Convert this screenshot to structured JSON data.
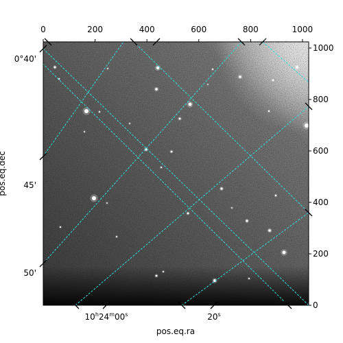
{
  "chart_data": {
    "type": "image",
    "xlabel": "pos.eq.ra",
    "ylabel": "pos.eq.dec",
    "pixel_axes": {
      "x_range": [
        0,
        1024
      ],
      "y_range": [
        0,
        1024
      ],
      "x_ticks": [
        0,
        200,
        400,
        600,
        800,
        1000
      ],
      "y_ticks": [
        0,
        200,
        400,
        600,
        800,
        1000
      ],
      "x_tick_labels": [
        "0",
        "200",
        "400",
        "600",
        "800",
        "1000"
      ],
      "y_tick_labels": [
        "0",
        "200",
        "400",
        "600",
        "800",
        "1000"
      ]
    },
    "world_axes": {
      "ra_tick_labels": [
        {
          "h": "10",
          "m": "24",
          "s": "00"
        },
        {
          "s": "20"
        }
      ],
      "dec_tick_labels": [
        "0°40'",
        "45'",
        "50'"
      ]
    },
    "grid": true,
    "grid_color": "#2ee0e0",
    "colormap": "gray"
  }
}
